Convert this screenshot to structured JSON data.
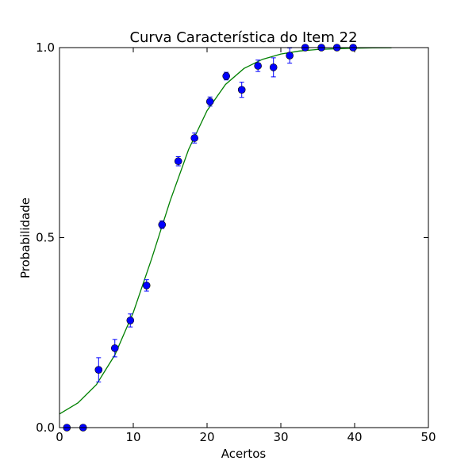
{
  "chart_data": {
    "type": "scatter",
    "title": "Curva Característica do Item 22",
    "xlabel": "Acertos",
    "ylabel": "Probabilidade",
    "xlim": [
      0,
      50
    ],
    "ylim": [
      0,
      1
    ],
    "xticks": [
      0,
      10,
      20,
      30,
      40,
      50
    ],
    "yticks": [
      {
        "value": 0,
        "label": "0.0"
      },
      {
        "value": 0.5,
        "label": "0.5"
      },
      {
        "value": 1,
        "label": "1.0"
      }
    ],
    "grid": false,
    "series": [
      {
        "type": "line",
        "color": "#008000",
        "x": [
          0,
          2.5,
          5,
          7.5,
          10,
          12.5,
          15,
          17.5,
          20,
          22.5,
          25,
          27.5,
          30,
          32.5,
          35,
          37.5,
          40,
          42.5,
          45
        ],
        "values": [
          0.036,
          0.065,
          0.113,
          0.191,
          0.303,
          0.445,
          0.597,
          0.732,
          0.834,
          0.903,
          0.945,
          0.969,
          0.983,
          0.991,
          0.995,
          0.997,
          0.9985,
          0.9992,
          0.9996
        ]
      },
      {
        "type": "errorbar",
        "color": "#0000ff",
        "x": [
          1.0,
          3.2,
          5.3,
          7.5,
          9.6,
          11.8,
          13.9,
          16.1,
          18.3,
          20.4,
          22.6,
          24.7,
          26.9,
          29.0,
          31.2,
          33.3,
          35.5,
          37.6,
          39.8
        ],
        "values": [
          0,
          0,
          0.152,
          0.209,
          0.282,
          0.374,
          0.534,
          0.701,
          0.762,
          0.858,
          0.925,
          0.889,
          0.952,
          0.948,
          0.979,
          1,
          1,
          1,
          1
        ],
        "errors": [
          0,
          0,
          0.032,
          0.023,
          0.017,
          0.015,
          0.01,
          0.012,
          0.013,
          0.012,
          0.01,
          0.02,
          0.015,
          0.025,
          0.02,
          0,
          0,
          0,
          0
        ]
      }
    ]
  }
}
